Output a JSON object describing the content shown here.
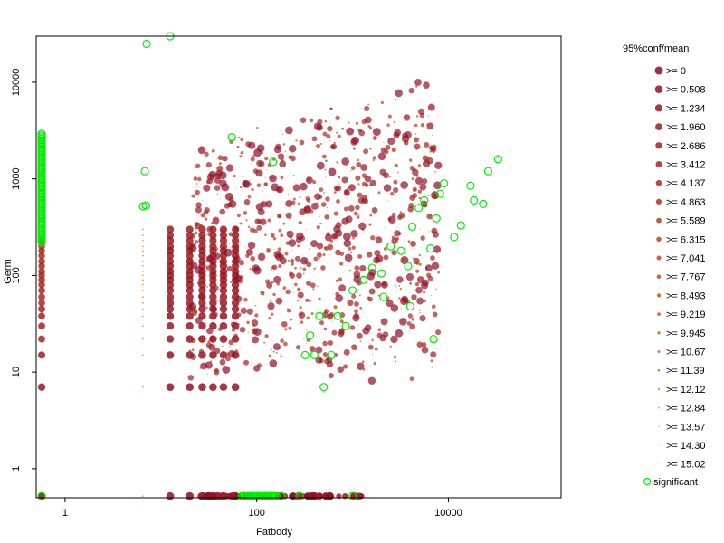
{
  "chart_data": {
    "type": "scatter",
    "title": "",
    "xlabel": "Fatbody",
    "ylabel": "Germ",
    "x_scale": "log",
    "y_scale": "log",
    "xlim": [
      0.5,
      150000
    ],
    "ylim": [
      0.5,
      30000
    ],
    "x_ticks": [
      {
        "value": 1,
        "label": "1"
      },
      {
        "value": 100,
        "label": "100"
      },
      {
        "value": 10000,
        "label": "10000"
      }
    ],
    "y_ticks": [
      {
        "value": 1,
        "label": "1"
      },
      {
        "value": 10,
        "label": "10"
      },
      {
        "value": 100,
        "label": "100"
      },
      {
        "value": 1000,
        "label": "1000"
      },
      {
        "value": 10000,
        "label": "10000"
      }
    ],
    "grid": false,
    "legend": {
      "title": "95%conf/mean",
      "position": "right",
      "entries": [
        ">= 0",
        ">= 0.508",
        ">= 1.234",
        ">= 1.960",
        ">= 2.686",
        ">= 3.412",
        ">= 4.137",
        ">= 4.863",
        ">= 5.589",
        ">= 6.315",
        ">= 7.041",
        ">= 7.767",
        ">= 8.493",
        ">= 9.219",
        ">= 9.945",
        ">= 10.67",
        ">= 11.39",
        ">= 12.12",
        ">= 12.84",
        ">= 13.57",
        ">= 14.30",
        ">= 15.02"
      ],
      "significant_label": "significant"
    },
    "colors": {
      "low_conf": "#8b0a2a",
      "high_conf": "#ff8c00",
      "significant": "#00ee00"
    },
    "significant_points": [
      {
        "x": 0.57,
        "y": 0.52
      },
      {
        "x": 0.57,
        "y": 2600
      },
      {
        "x": 0.57,
        "y": 1900
      },
      {
        "x": 0.57,
        "y": 1400
      },
      {
        "x": 0.57,
        "y": 1000
      },
      {
        "x": 0.57,
        "y": 700
      },
      {
        "x": 0.57,
        "y": 500
      },
      {
        "x": 0.57,
        "y": 350
      },
      {
        "x": 0.57,
        "y": 250
      },
      {
        "x": 6.8,
        "y": 1200
      },
      {
        "x": 6.5,
        "y": 520
      },
      {
        "x": 7.0,
        "y": 530
      },
      {
        "x": 7.1,
        "y": 25000
      },
      {
        "x": 12.5,
        "y": 30000
      },
      {
        "x": 55,
        "y": 2700
      },
      {
        "x": 148,
        "y": 1500
      },
      {
        "x": 100,
        "y": 0.52
      },
      {
        "x": 180,
        "y": 0.52
      },
      {
        "x": 280,
        "y": 0.52
      },
      {
        "x": 1000,
        "y": 0.52
      },
      {
        "x": 320,
        "y": 15
      },
      {
        "x": 400,
        "y": 15
      },
      {
        "x": 600,
        "y": 15
      },
      {
        "x": 360,
        "y": 24
      },
      {
        "x": 500,
        "y": 7
      },
      {
        "x": 450,
        "y": 38
      },
      {
        "x": 700,
        "y": 38
      },
      {
        "x": 850,
        "y": 30
      },
      {
        "x": 1000,
        "y": 70
      },
      {
        "x": 1300,
        "y": 90
      },
      {
        "x": 1600,
        "y": 120
      },
      {
        "x": 2000,
        "y": 105
      },
      {
        "x": 2100,
        "y": 60
      },
      {
        "x": 2500,
        "y": 200
      },
      {
        "x": 3200,
        "y": 180
      },
      {
        "x": 4200,
        "y": 320
      },
      {
        "x": 3800,
        "y": 125
      },
      {
        "x": 4000,
        "y": 48
      },
      {
        "x": 4900,
        "y": 500
      },
      {
        "x": 5600,
        "y": 600
      },
      {
        "x": 6500,
        "y": 190
      },
      {
        "x": 7000,
        "y": 22
      },
      {
        "x": 7500,
        "y": 390
      },
      {
        "x": 8200,
        "y": 700
      },
      {
        "x": 9000,
        "y": 900
      },
      {
        "x": 11500,
        "y": 250
      },
      {
        "x": 13500,
        "y": 330
      },
      {
        "x": 17000,
        "y": 850
      },
      {
        "x": 18500,
        "y": 600
      },
      {
        "x": 23000,
        "y": 550
      },
      {
        "x": 26000,
        "y": 1200
      },
      {
        "x": 33000,
        "y": 1600
      }
    ]
  }
}
